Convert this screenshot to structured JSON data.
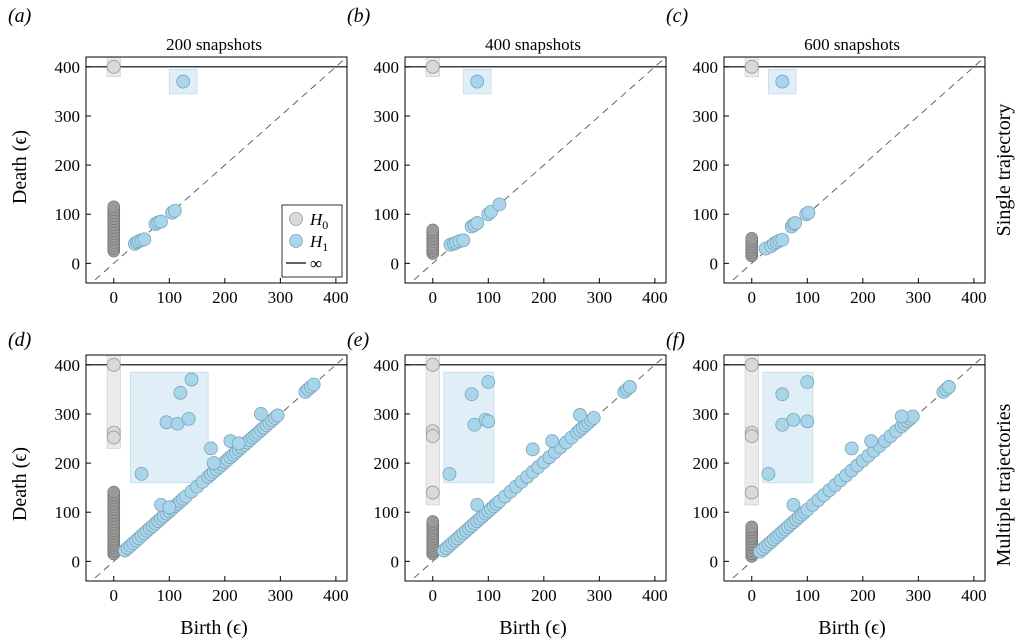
{
  "figure": {
    "column_titles": [
      "200 snapshots",
      "400 snapshots",
      "600 snapshots"
    ],
    "row_labels": [
      "Single trajectory",
      "Multiple trajectories"
    ],
    "ylabel": "Death (ϵ)",
    "xlabel": "Birth (ϵ)",
    "legend": [
      {
        "label": "H0",
        "base": "H",
        "sub": "0",
        "kind": "marker",
        "color": "#d9d9d9"
      },
      {
        "label": "H1",
        "base": "H",
        "sub": "1",
        "kind": "marker",
        "color": "#a8d5ea"
      },
      {
        "label": "∞",
        "base": "∞",
        "sub": "",
        "kind": "line",
        "color": "#000000"
      }
    ],
    "colors": {
      "H0": "#d9d9d9",
      "H0_dense": "#8a8a8a",
      "H1": "#a8d5ea",
      "H1_box": "#d9ecf6",
      "H0_box": "#e6e6e6"
    }
  },
  "chart_data": [
    {
      "panel": "(a)",
      "type": "scatter",
      "title": "200 snapshots",
      "xlim": [
        -50,
        420
      ],
      "ylim": [
        -40,
        420
      ],
      "xticks": [
        0,
        100,
        200,
        300,
        400
      ],
      "yticks": [
        0,
        100,
        200,
        300,
        400
      ],
      "infinity": 400,
      "diagonal": true,
      "legend_position": "bottom-right",
      "h0_dense_range": [
        25,
        120
      ],
      "series": [
        {
          "name": "H0",
          "x": [
            0
          ],
          "y": [
            400
          ]
        },
        {
          "name": "H1",
          "x": [
            38,
            42,
            45,
            50,
            55,
            75,
            80,
            85,
            105,
            110,
            125
          ],
          "y": [
            40,
            43,
            45,
            47,
            49,
            80,
            83,
            85,
            103,
            107,
            370
          ]
        }
      ],
      "highlight_boxes": [
        {
          "series": "H0",
          "x": [
            -12,
            12
          ],
          "y": [
            380,
            420
          ]
        },
        {
          "series": "H1",
          "x": [
            100,
            150
          ],
          "y": [
            345,
            395
          ]
        }
      ]
    },
    {
      "panel": "(b)",
      "type": "scatter",
      "title": "400 snapshots",
      "xlim": [
        -50,
        420
      ],
      "ylim": [
        -40,
        420
      ],
      "xticks": [
        0,
        100,
        200,
        300,
        400
      ],
      "yticks": [
        0,
        100,
        200,
        300,
        400
      ],
      "infinity": 400,
      "diagonal": true,
      "h0_dense_range": [
        20,
        70
      ],
      "series": [
        {
          "name": "H0",
          "x": [
            0
          ],
          "y": [
            400
          ]
        },
        {
          "name": "H1",
          "x": [
            32,
            38,
            42,
            48,
            55,
            70,
            75,
            80,
            100,
            105,
            120,
            80
          ],
          "y": [
            38,
            40,
            42,
            45,
            47,
            75,
            78,
            82,
            100,
            105,
            120,
            370
          ]
        }
      ],
      "highlight_boxes": [
        {
          "series": "H0",
          "x": [
            -12,
            12
          ],
          "y": [
            380,
            420
          ]
        },
        {
          "series": "H1",
          "x": [
            55,
            105
          ],
          "y": [
            345,
            395
          ]
        }
      ]
    },
    {
      "panel": "(c)",
      "type": "scatter",
      "title": "600 snapshots",
      "xlim": [
        -50,
        420
      ],
      "ylim": [
        -40,
        420
      ],
      "xticks": [
        0,
        100,
        200,
        300,
        400
      ],
      "yticks": [
        0,
        100,
        200,
        300,
        400
      ],
      "infinity": 400,
      "diagonal": true,
      "h0_dense_range": [
        15,
        55
      ],
      "series": [
        {
          "name": "H0",
          "x": [
            0
          ],
          "y": [
            400
          ]
        },
        {
          "name": "H1",
          "x": [
            25,
            35,
            40,
            45,
            50,
            55,
            72,
            75,
            78,
            98,
            102,
            55
          ],
          "y": [
            30,
            35,
            40,
            43,
            46,
            48,
            75,
            80,
            82,
            100,
            103,
            370
          ]
        }
      ],
      "highlight_boxes": [
        {
          "series": "H0",
          "x": [
            -12,
            12
          ],
          "y": [
            380,
            420
          ]
        },
        {
          "series": "H1",
          "x": [
            30,
            80
          ],
          "y": [
            345,
            395
          ]
        }
      ]
    },
    {
      "panel": "(d)",
      "type": "scatter",
      "title": "",
      "xlim": [
        -50,
        420
      ],
      "ylim": [
        -40,
        420
      ],
      "xticks": [
        0,
        100,
        200,
        300,
        400
      ],
      "yticks": [
        0,
        100,
        200,
        300,
        400
      ],
      "infinity": 400,
      "diagonal": true,
      "h0_dense_range": [
        15,
        145
      ],
      "series": [
        {
          "name": "H0",
          "x": [
            0,
            0,
            0
          ],
          "y": [
            400,
            262,
            252
          ]
        },
        {
          "name": "H1",
          "x": [
            20,
            25,
            30,
            35,
            40,
            45,
            50,
            55,
            60,
            65,
            70,
            75,
            80,
            85,
            90,
            95,
            100,
            105,
            110,
            115,
            120,
            125,
            130,
            140,
            150,
            160,
            170,
            175,
            180,
            185,
            190,
            195,
            200,
            205,
            210,
            215,
            220,
            225,
            230,
            235,
            240,
            245,
            250,
            255,
            260,
            265,
            270,
            275,
            280,
            285,
            290,
            295,
            345,
            350,
            355,
            360,
            85,
            100,
            175,
            180,
            210,
            225,
            265,
            50,
            95,
            115,
            120,
            135,
            140
          ],
          "y": [
            22,
            27,
            32,
            37,
            42,
            47,
            52,
            57,
            62,
            67,
            72,
            77,
            82,
            87,
            92,
            97,
            102,
            107,
            112,
            117,
            122,
            127,
            132,
            142,
            152,
            162,
            172,
            177,
            182,
            187,
            192,
            197,
            202,
            207,
            212,
            217,
            222,
            227,
            232,
            237,
            242,
            247,
            252,
            257,
            262,
            267,
            272,
            277,
            282,
            287,
            292,
            297,
            345,
            350,
            355,
            360,
            115,
            110,
            230,
            200,
            245,
            240,
            300,
            178,
            283,
            280,
            343,
            290,
            370
          ]
        }
      ],
      "highlight_boxes": [
        {
          "series": "H0",
          "x": [
            -12,
            12
          ],
          "y": [
            230,
            420
          ]
        },
        {
          "series": "H1",
          "x": [
            30,
            170
          ],
          "y": [
            160,
            385
          ]
        }
      ]
    },
    {
      "panel": "(e)",
      "type": "scatter",
      "title": "",
      "xlim": [
        -50,
        420
      ],
      "ylim": [
        -40,
        420
      ],
      "xticks": [
        0,
        100,
        200,
        300,
        400
      ],
      "yticks": [
        0,
        100,
        200,
        300,
        400
      ],
      "infinity": 400,
      "diagonal": true,
      "h0_dense_range": [
        15,
        85
      ],
      "series": [
        {
          "name": "H0",
          "x": [
            0,
            0,
            0,
            0
          ],
          "y": [
            400,
            265,
            255,
            140
          ]
        },
        {
          "name": "H1",
          "x": [
            20,
            25,
            30,
            35,
            40,
            45,
            50,
            55,
            60,
            65,
            70,
            75,
            80,
            85,
            90,
            95,
            100,
            105,
            110,
            115,
            120,
            130,
            140,
            150,
            160,
            170,
            180,
            190,
            200,
            210,
            220,
            230,
            240,
            250,
            260,
            265,
            270,
            275,
            280,
            285,
            290,
            345,
            350,
            355,
            80,
            180,
            215,
            265,
            30,
            70,
            75,
            95,
            100,
            100
          ],
          "y": [
            22,
            27,
            32,
            37,
            42,
            47,
            52,
            57,
            62,
            67,
            72,
            77,
            82,
            87,
            92,
            97,
            102,
            107,
            112,
            117,
            122,
            132,
            142,
            152,
            162,
            172,
            182,
            192,
            202,
            212,
            222,
            232,
            242,
            252,
            262,
            267,
            272,
            277,
            282,
            287,
            292,
            345,
            350,
            355,
            115,
            228,
            245,
            298,
            178,
            340,
            278,
            288,
            285,
            365
          ]
        }
      ],
      "highlight_boxes": [
        {
          "series": "H0",
          "x": [
            -12,
            12
          ],
          "y": [
            115,
            420
          ]
        },
        {
          "series": "H1",
          "x": [
            20,
            110
          ],
          "y": [
            160,
            385
          ]
        }
      ]
    },
    {
      "panel": "(f)",
      "type": "scatter",
      "title": "",
      "xlim": [
        -50,
        420
      ],
      "ylim": [
        -40,
        420
      ],
      "xticks": [
        0,
        100,
        200,
        300,
        400
      ],
      "yticks": [
        0,
        100,
        200,
        300,
        400
      ],
      "infinity": 400,
      "diagonal": true,
      "h0_dense_range": [
        10,
        75
      ],
      "series": [
        {
          "name": "H0",
          "x": [
            0,
            0,
            0,
            0
          ],
          "y": [
            400,
            262,
            255,
            140
          ]
        },
        {
          "name": "H1",
          "x": [
            15,
            20,
            25,
            30,
            35,
            40,
            45,
            50,
            55,
            60,
            65,
            70,
            75,
            80,
            85,
            90,
            95,
            100,
            110,
            120,
            130,
            140,
            150,
            160,
            170,
            180,
            190,
            200,
            210,
            220,
            230,
            240,
            250,
            260,
            270,
            275,
            280,
            285,
            290,
            345,
            350,
            355,
            75,
            180,
            215,
            270,
            30,
            55,
            55,
            75,
            100,
            100
          ],
          "y": [
            20,
            25,
            30,
            35,
            40,
            45,
            50,
            55,
            60,
            65,
            70,
            75,
            80,
            85,
            90,
            95,
            100,
            105,
            115,
            125,
            135,
            145,
            155,
            165,
            175,
            185,
            195,
            205,
            215,
            225,
            235,
            245,
            255,
            265,
            275,
            280,
            285,
            290,
            295,
            345,
            350,
            355,
            115,
            230,
            245,
            295,
            178,
            340,
            278,
            288,
            285,
            365
          ]
        }
      ],
      "highlight_boxes": [
        {
          "series": "H0",
          "x": [
            -12,
            12
          ],
          "y": [
            115,
            420
          ]
        },
        {
          "series": "H1",
          "x": [
            20,
            110
          ],
          "y": [
            160,
            385
          ]
        }
      ]
    }
  ]
}
